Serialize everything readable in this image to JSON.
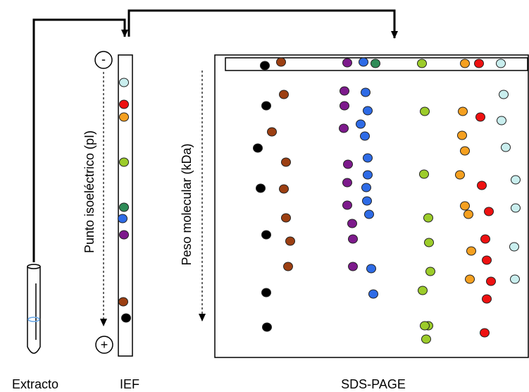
{
  "labels": {
    "extracto": "Extracto",
    "ief": "IEF",
    "sds_page": "SDS-PAGE",
    "pi_axis": "Punto isoeléctrico (pI)",
    "mw_axis": "Peso molecular (kDa)",
    "minus": "-",
    "plus": "+"
  }
}
